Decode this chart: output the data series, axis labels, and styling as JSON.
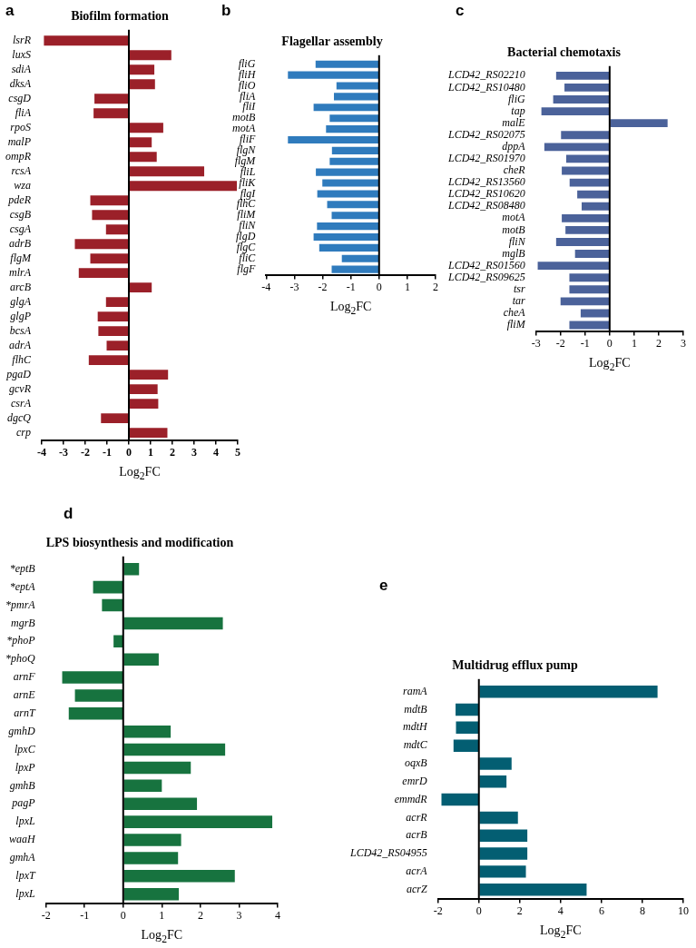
{
  "chart_data": [
    {
      "type": "bar",
      "orientation": "horizontal",
      "title": "Biofilm formation",
      "xlabel": "Log$_{2}$FC",
      "annotations": [
        "a"
      ],
      "color": "#9b2029",
      "categories": [
        "lsrR",
        "luxS",
        "sdiA",
        "dksA",
        "csgD",
        "fliA",
        "rpoS",
        "malP",
        "ompR",
        "rcsA",
        "wza",
        "pdeR",
        "csgB",
        "csgA",
        "adrB",
        "flgM",
        "mlrA",
        "arcB",
        "glgA",
        "glgP",
        "bcsA",
        "adrA",
        "flhC",
        "pgaD",
        "gcvR",
        "csrA",
        "dgcQ",
        "crp"
      ],
      "values": [
        -3.9,
        1.95,
        1.17,
        1.2,
        -1.58,
        -1.62,
        1.58,
        1.05,
        1.28,
        3.46,
        4.96,
        -1.77,
        -1.69,
        -1.05,
        -2.48,
        -1.77,
        -2.3,
        1.05,
        -1.05,
        -1.43,
        -1.4,
        -1.02,
        -1.84,
        1.8,
        1.32,
        1.35,
        -1.28,
        1.77
      ],
      "xlim": [
        -4,
        5
      ],
      "xticks": [
        -4,
        -3,
        -2,
        -1,
        0,
        1,
        2,
        3,
        4,
        5
      ]
    },
    {
      "type": "bar",
      "orientation": "horizontal",
      "title": "Flagellar assembly",
      "xlabel": "Log$_{2}$FC",
      "annotations": [
        "b"
      ],
      "color": "#2f7bbd",
      "categories": [
        "fliG",
        "fliH",
        "fliO",
        "fliA",
        "fliI",
        "motB",
        "motA",
        "fliF",
        "flgN",
        "flgM",
        "fliL",
        "fliK",
        "flgI",
        "flhC",
        "fliM",
        "fliN",
        "flgD",
        "flgC",
        "fliC",
        "flgF"
      ],
      "values": [
        -2.25,
        -3.23,
        -1.51,
        -1.6,
        -2.32,
        -1.75,
        -1.88,
        -3.23,
        -1.67,
        -1.75,
        -2.24,
        -2.01,
        -2.19,
        -1.84,
        -1.68,
        -2.2,
        -2.32,
        -2.12,
        -1.32,
        -1.68
      ],
      "xlim": [
        -4,
        2
      ],
      "xticks": [
        -4,
        -3,
        -2,
        -1,
        0,
        1,
        2
      ]
    },
    {
      "type": "bar",
      "orientation": "horizontal",
      "title": "Bacterial chemotaxis",
      "xlabel": "Log$_{2}$FC",
      "annotations": [
        "c"
      ],
      "color": "#4b629a",
      "categories": [
        "LCD42_RS02210",
        "LCD42_RS10480",
        "fliG",
        "tap",
        "malE",
        "LCD42_RS02075",
        "dppA",
        "LCD42_RS01970",
        "cheR",
        "LCD42_RS13560",
        "LCD42_RS10620",
        "LCD42_RS08480",
        "motA",
        "motB",
        "fliN",
        "mglB",
        "LCD42_RS01560",
        "LCD42_RS09625",
        "tsr",
        "tar",
        "cheA",
        "fliM"
      ],
      "values": [
        -2.18,
        -1.84,
        -2.3,
        -2.78,
        2.36,
        -1.98,
        -2.66,
        -1.77,
        -1.95,
        -1.63,
        -1.32,
        -1.14,
        -1.95,
        -1.8,
        -2.18,
        -1.41,
        -2.93,
        -1.64,
        -1.64,
        -2.0,
        -1.18,
        -1.64
      ],
      "xlim": [
        -3,
        3
      ],
      "xticks": [
        -3,
        -2,
        -1,
        0,
        1,
        2,
        3
      ]
    },
    {
      "type": "bar",
      "orientation": "horizontal",
      "title": "LPS biosynthesis and modification",
      "xlabel": "Log$_{2}$FC",
      "annotations": [
        "d"
      ],
      "color": "#17733f",
      "categories": [
        "*eptB",
        "*eptA",
        "*pmrA",
        "mgrB",
        "*phoP",
        "*phoQ",
        "arnF",
        "arnE",
        "arnT",
        "gmhD",
        "lpxC",
        "lpxP",
        "gmhB",
        "pagP",
        "lpxL",
        "waaH",
        "gmhA",
        "lpxT",
        "lpxL"
      ],
      "values": [
        0.41,
        -0.78,
        -0.55,
        2.58,
        -0.25,
        0.92,
        -1.58,
        -1.25,
        -1.41,
        1.23,
        2.64,
        1.75,
        1.0,
        1.91,
        3.86,
        1.5,
        1.42,
        2.89,
        1.44
      ],
      "xlim": [
        -2,
        4
      ],
      "xticks": [
        -2,
        -1,
        0,
        1,
        2,
        3,
        4
      ]
    },
    {
      "type": "bar",
      "orientation": "horizontal",
      "title": "Multidrug efflux pump",
      "xlabel": "Log$_{2}$FC",
      "annotations": [
        "e"
      ],
      "color": "#035e72",
      "categories": [
        "ramA",
        "mdtB",
        "mdtH",
        "mdtC",
        "oqxB",
        "emrD",
        "emmdR",
        "acrR",
        "acrB",
        "LCD42_RS04955",
        "acrA",
        "acrZ"
      ],
      "values": [
        8.74,
        -1.14,
        -1.12,
        -1.24,
        1.6,
        1.35,
        -1.83,
        1.91,
        2.37,
        2.37,
        2.3,
        5.27
      ],
      "xlim": [
        -2,
        10
      ],
      "xticks": [
        -2,
        0,
        2,
        4,
        6,
        8,
        10
      ]
    }
  ]
}
